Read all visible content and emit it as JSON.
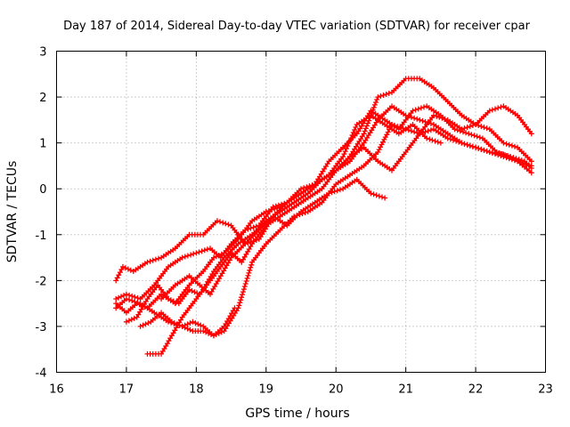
{
  "chart_data": {
    "type": "scatter",
    "title": "Day 187 of 2014, Sidereal Day-to-day VTEC variation (SDTVAR) for receiver cpar",
    "xlabel": "GPS time / hours",
    "ylabel": "SDTVAR / TECUs",
    "xlim": [
      16,
      23
    ],
    "ylim": [
      -4,
      3
    ],
    "xticks": [
      "16",
      "17",
      "18",
      "19",
      "20",
      "21",
      "22",
      "23"
    ],
    "yticks": [
      "-4",
      "-3",
      "-2",
      "-1",
      "0",
      "1",
      "2",
      "3"
    ],
    "grid": true,
    "marker": "+",
    "color": "#ff0000",
    "series": [
      {
        "name": "s1",
        "x": [
          16.85,
          16.95,
          17.1,
          17.3,
          17.5,
          17.7,
          17.9,
          18.1,
          18.3,
          18.5,
          18.7,
          18.9,
          19.1,
          19.3,
          19.5,
          19.7,
          19.9,
          20.1,
          20.3,
          20.5,
          20.7,
          20.9,
          21.1,
          21.3,
          21.5
        ],
        "y": [
          -2.0,
          -1.7,
          -1.8,
          -1.6,
          -1.5,
          -1.3,
          -1.0,
          -1.0,
          -0.7,
          -0.8,
          -1.2,
          -0.9,
          -0.6,
          -0.3,
          -0.1,
          0.1,
          0.3,
          0.7,
          1.4,
          1.6,
          1.4,
          1.2,
          1.4,
          1.1,
          1.0
        ]
      },
      {
        "name": "s2",
        "x": [
          16.85,
          17.0,
          17.2,
          17.4,
          17.6,
          17.8,
          18.0,
          18.2,
          18.35,
          18.5,
          18.7,
          18.9,
          19.1,
          19.3,
          19.5,
          19.7,
          19.9,
          20.1,
          20.3,
          20.5,
          20.7,
          20.9,
          21.1,
          21.3,
          21.5,
          21.7,
          21.9,
          22.1,
          22.3,
          22.5,
          22.7,
          22.8
        ],
        "y": [
          -2.4,
          -2.3,
          -2.4,
          -2.1,
          -1.7,
          -1.5,
          -1.4,
          -1.3,
          -1.5,
          -1.2,
          -0.9,
          -0.8,
          -0.4,
          -0.3,
          0.0,
          0.1,
          0.6,
          0.9,
          1.2,
          1.7,
          1.5,
          1.3,
          1.7,
          1.8,
          1.6,
          1.3,
          1.2,
          1.1,
          0.8,
          0.7,
          0.6,
          0.45
        ]
      },
      {
        "name": "s3",
        "x": [
          16.85,
          17.0,
          17.15,
          17.3,
          17.5,
          17.7,
          17.9,
          18.1,
          18.25,
          18.4,
          18.6,
          18.8,
          19.0,
          19.2,
          19.4,
          19.6,
          19.8,
          20.0,
          20.2,
          20.4,
          20.6,
          20.8,
          21.0,
          21.2,
          21.4,
          21.6,
          21.8,
          22.0,
          22.2,
          22.4,
          22.6,
          22.8
        ],
        "y": [
          -2.5,
          -2.7,
          -2.5,
          -2.6,
          -2.3,
          -2.5,
          -2.1,
          -1.8,
          -1.5,
          -1.4,
          -1.1,
          -0.7,
          -0.5,
          -0.4,
          -0.2,
          0.0,
          0.2,
          0.4,
          0.6,
          1.0,
          1.5,
          1.8,
          1.6,
          1.5,
          1.4,
          1.2,
          1.0,
          0.9,
          0.8,
          0.75,
          0.6,
          0.35
        ]
      },
      {
        "name": "s4",
        "x": [
          16.85,
          17.0,
          17.2,
          17.4,
          17.6,
          17.8,
          17.95,
          18.1,
          18.25,
          18.4,
          18.6,
          18.8,
          19.0,
          19.2,
          19.4,
          19.6,
          19.8,
          20.0,
          20.2,
          20.4,
          20.6,
          20.8,
          21.0,
          21.2,
          21.4,
          21.6,
          21.8,
          22.0,
          22.2,
          22.4,
          22.6,
          22.8
        ],
        "y": [
          -2.6,
          -2.4,
          -2.5,
          -2.7,
          -2.9,
          -3.0,
          -3.1,
          -3.1,
          -3.2,
          -3.1,
          -2.6,
          -1.6,
          -1.2,
          -0.9,
          -0.6,
          -0.5,
          -0.3,
          0.1,
          0.3,
          0.5,
          0.8,
          1.4,
          1.3,
          1.2,
          1.6,
          1.5,
          1.3,
          1.4,
          1.7,
          1.8,
          1.6,
          1.2
        ]
      },
      {
        "name": "s5",
        "x": [
          17.3,
          17.5,
          17.65,
          17.8,
          17.95,
          18.1,
          18.25,
          18.4,
          18.6,
          18.8,
          19.0,
          19.2,
          19.4,
          19.6,
          19.8,
          20.0,
          20.2,
          20.4,
          20.6,
          20.8,
          21.0,
          21.2,
          21.4,
          21.6,
          21.8,
          22.0,
          22.2,
          22.4,
          22.6,
          22.8
        ],
        "y": [
          -3.6,
          -3.6,
          -3.2,
          -2.8,
          -2.5,
          -2.2,
          -1.8,
          -1.5,
          -1.2,
          -1.0,
          -0.7,
          -0.5,
          -0.3,
          -0.1,
          0.2,
          0.4,
          0.7,
          1.2,
          2.0,
          2.1,
          2.4,
          2.4,
          2.2,
          1.9,
          1.6,
          1.4,
          1.3,
          1.0,
          0.9,
          0.6
        ]
      },
      {
        "name": "s6",
        "x": [
          17.0,
          17.15,
          17.3,
          17.45,
          17.6,
          17.75,
          17.9,
          18.05,
          18.2,
          18.35,
          18.5,
          18.65,
          18.8,
          19.0,
          19.2,
          19.4,
          19.6,
          19.8,
          20.0,
          20.2,
          20.4,
          20.6,
          20.8,
          21.0,
          21.2,
          21.4,
          21.6,
          21.8,
          22.0,
          22.2,
          22.4,
          22.6,
          22.8
        ],
        "y": [
          -2.9,
          -2.8,
          -2.4,
          -2.1,
          -2.4,
          -2.5,
          -2.2,
          -2.3,
          -2.0,
          -1.7,
          -1.4,
          -1.6,
          -1.2,
          -0.8,
          -0.6,
          -0.4,
          -0.2,
          0.0,
          0.4,
          0.7,
          0.9,
          0.6,
          0.4,
          0.8,
          1.2,
          1.3,
          1.1,
          1.0,
          0.9,
          0.8,
          0.7,
          0.6,
          0.5
        ]
      },
      {
        "name": "s7",
        "x": [
          17.2,
          17.35,
          17.5,
          17.65,
          17.8,
          17.95,
          18.1,
          18.25,
          18.4,
          18.55
        ],
        "y": [
          -3.0,
          -2.9,
          -2.7,
          -2.9,
          -3.0,
          -2.9,
          -3.0,
          -3.2,
          -3.0,
          -2.6
        ]
      },
      {
        "name": "s8",
        "x": [
          17.5,
          17.7,
          17.9,
          18.05,
          18.2,
          18.35,
          18.5,
          18.7,
          18.9,
          19.1,
          19.3,
          19.5,
          19.7,
          19.9,
          20.1,
          20.3,
          20.5,
          20.7
        ],
        "y": [
          -2.4,
          -2.1,
          -1.9,
          -2.1,
          -2.3,
          -1.9,
          -1.5,
          -1.2,
          -1.1,
          -0.6,
          -0.8,
          -0.5,
          -0.3,
          -0.1,
          0.0,
          0.2,
          -0.1,
          -0.2
        ]
      }
    ]
  }
}
